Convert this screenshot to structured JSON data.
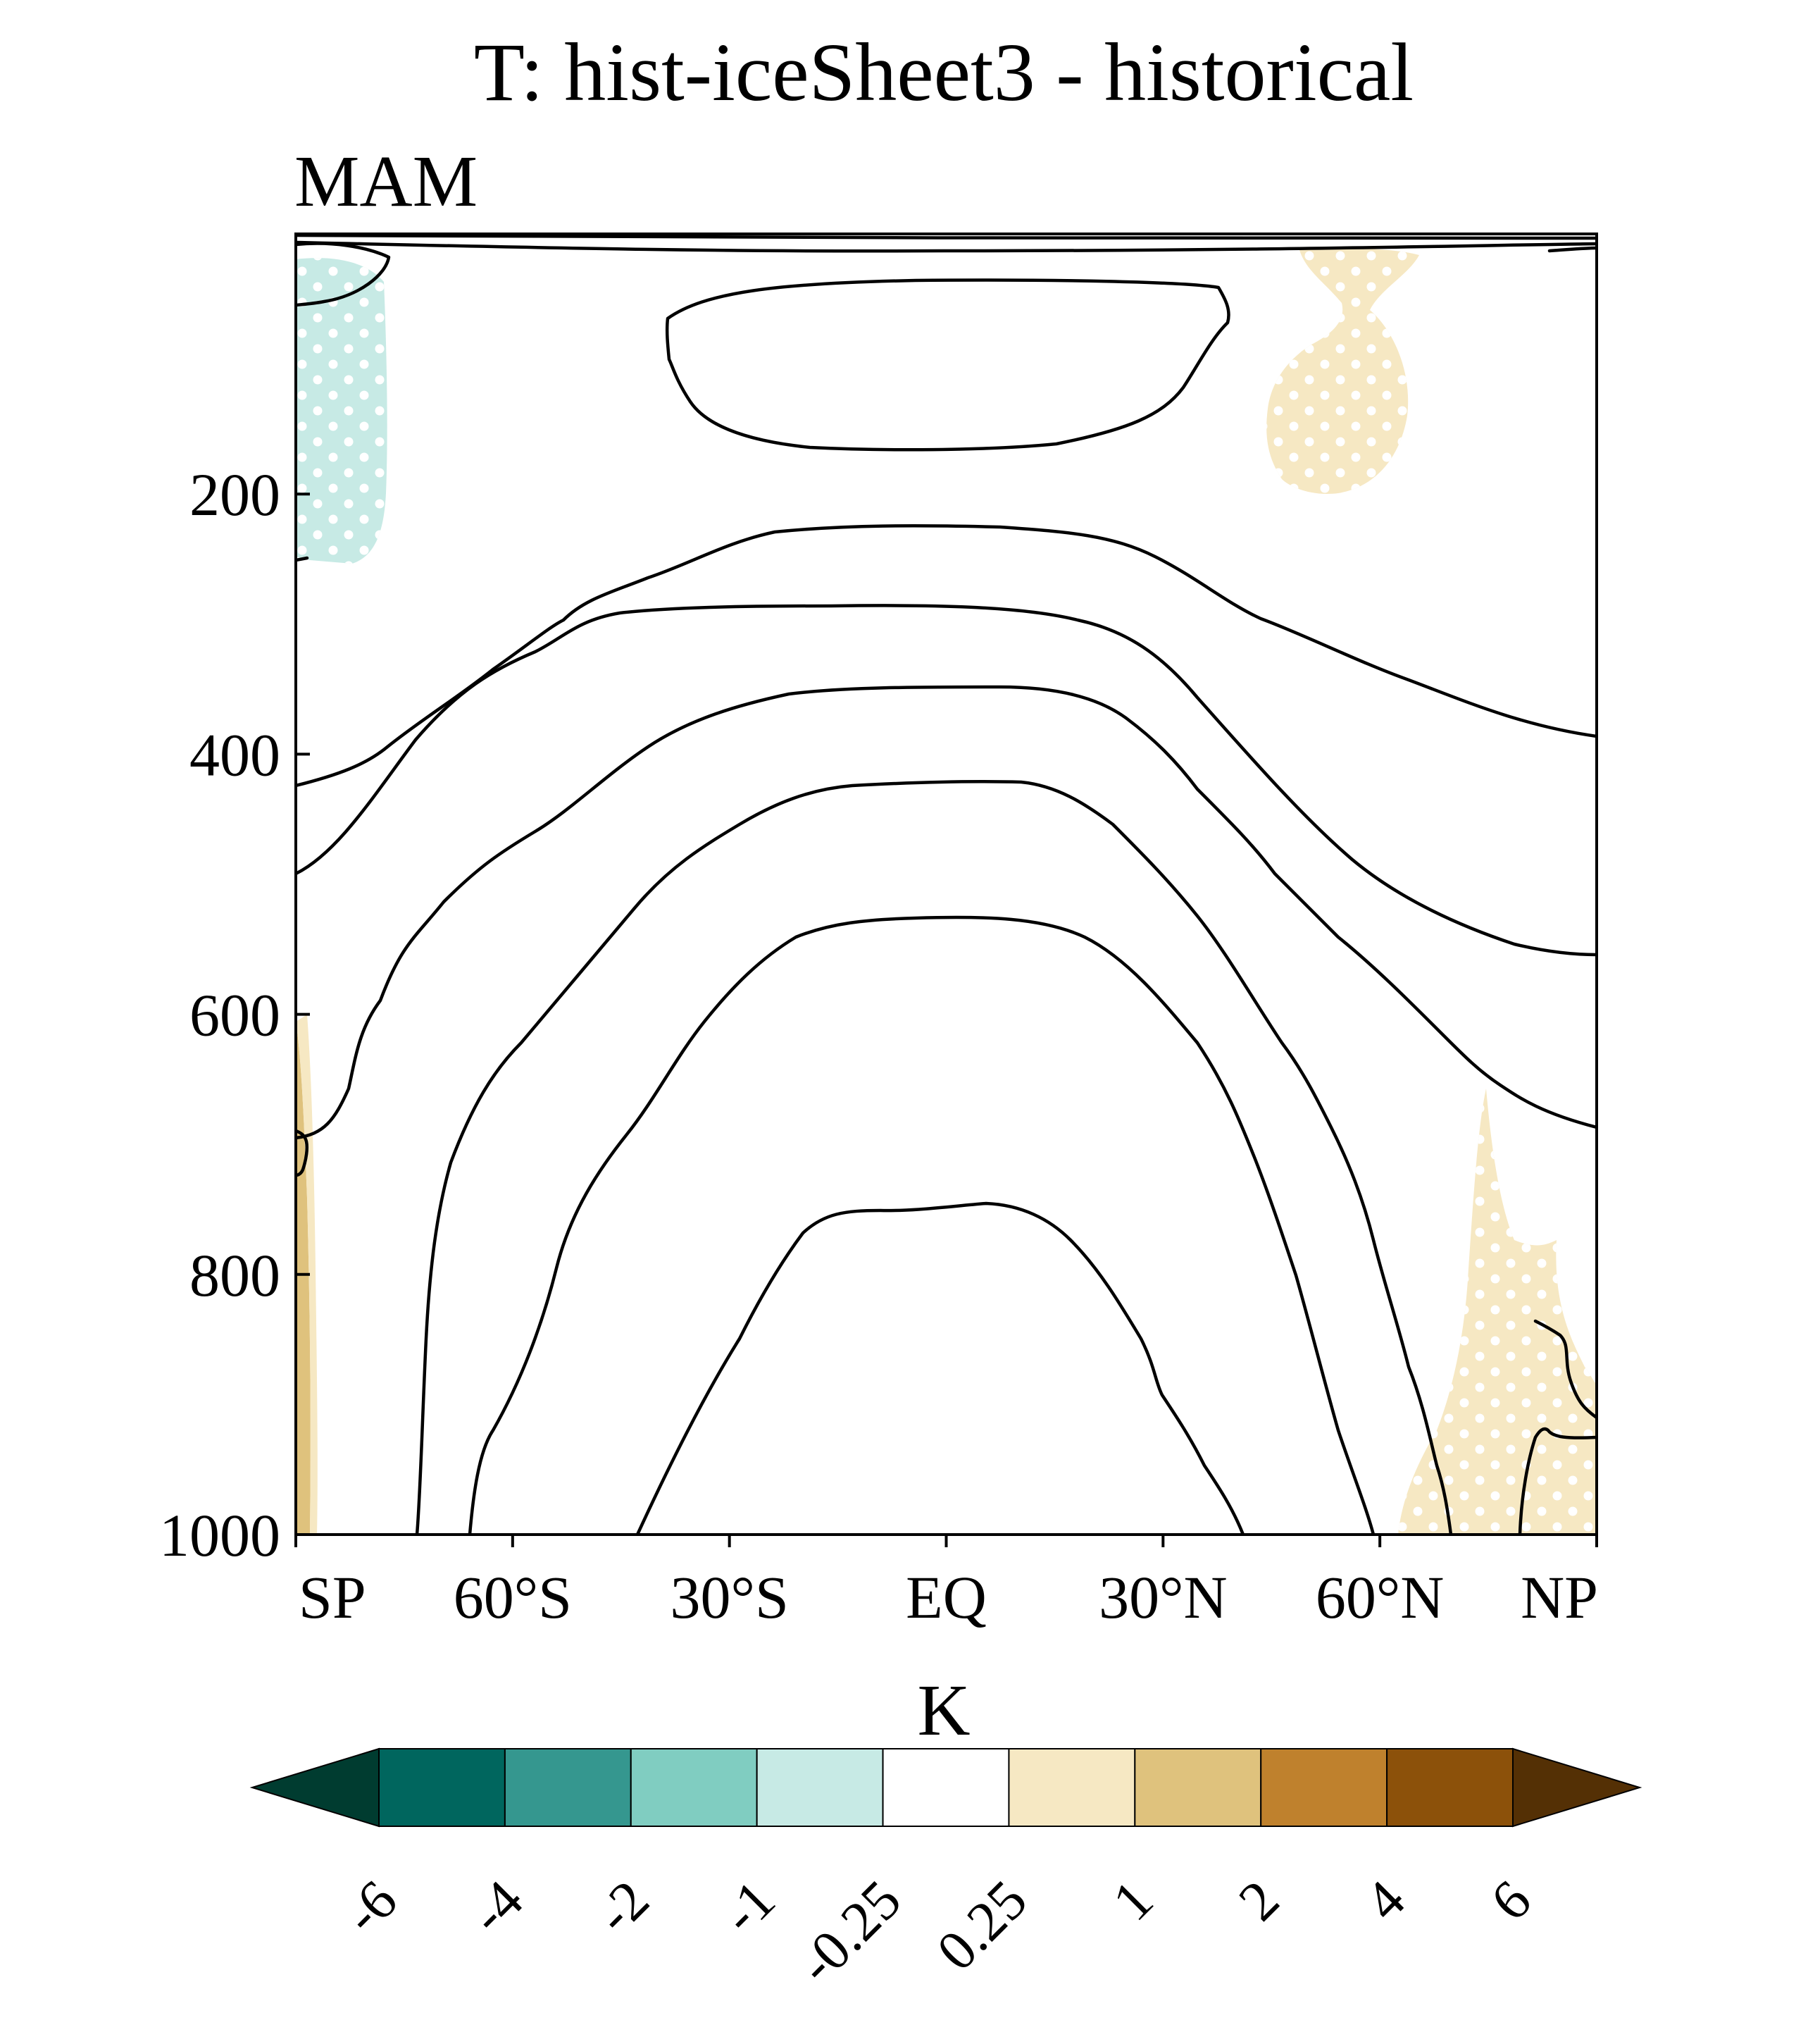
{
  "chart_data": {
    "type": "contour",
    "title": "T: hist-iceSheet3 - historical",
    "season": "MAM",
    "colorbar_unit": "K",
    "y_axis": {
      "ticks": [
        "200",
        "400",
        "600",
        "800",
        "1000"
      ],
      "values": [
        200,
        400,
        600,
        800,
        1000
      ],
      "range": [
        0,
        1000
      ],
      "inverted": true
    },
    "x_axis": {
      "ticks": [
        "SP",
        "60°S",
        "30°S",
        "EQ",
        "30°N",
        "60°N",
        "NP"
      ],
      "values": [
        -90,
        -60,
        -30,
        0,
        30,
        60,
        90
      ],
      "range": [
        -90,
        90
      ]
    },
    "colorbar": {
      "levels": [
        "-6",
        "-4",
        "-2",
        "-1",
        "-0.25",
        "0.25",
        "1",
        "2",
        "4",
        "6"
      ],
      "colors": [
        "#00665e",
        "#35978f",
        "#80cdc1",
        "#c7eae5",
        "#ffffff",
        "#f6e8c3",
        "#dfc27d",
        "#bf812d",
        "#8c510a"
      ],
      "under_color": "#003c30",
      "over_color": "#543005"
    },
    "shaded_regions": [
      {
        "sign": "negative",
        "bin": "-1 to -0.25",
        "lat_range": [
          -90,
          -78
        ],
        "plev_range": [
          0,
          250
        ],
        "stippled": true
      },
      {
        "sign": "positive",
        "bin": "0.25 to 1",
        "lat_range": [
          45,
          68
        ],
        "plev_range": [
          0,
          200
        ],
        "stippled": true
      },
      {
        "sign": "positive",
        "bin": "0.25 to 1",
        "lat_range": [
          63,
          90
        ],
        "plev_range": [
          650,
          1000
        ],
        "stippled": true
      },
      {
        "sign": "positive",
        "bin": "1 to 2",
        "lat_range": [
          -90,
          -88
        ],
        "plev_range": [
          600,
          1000
        ],
        "stippled": false
      }
    ],
    "contour_note": "black climatology isotherm contours"
  }
}
